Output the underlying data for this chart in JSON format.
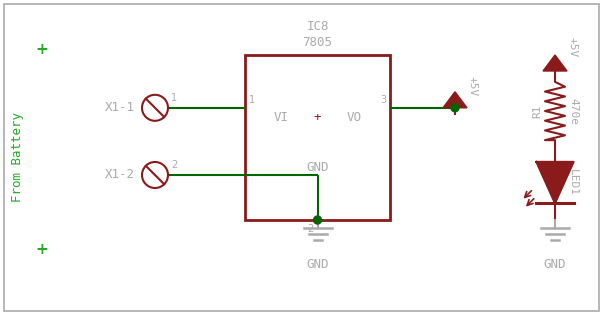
{
  "bg_color": "#ffffff",
  "border_color": "#aaaaaa",
  "wire_color": "#006600",
  "component_color": "#8B1A1A",
  "label_color": "#aaaaaa",
  "green_label_color": "#22aa22",
  "junction_color": "#006600",
  "ic_label_top": "IC8",
  "ic_label_sub": "7805",
  "ic_text_vi": "VI",
  "ic_text_plus": "+",
  "ic_text_vo": "VO",
  "ic_text_gnd": "GND",
  "x1_1_label": "X1-1",
  "x1_2_label": "X1-2",
  "from_battery_label": "From Battery",
  "gnd_label": "GND",
  "r1_label": "R1",
  "r1_val": "470e",
  "led1_label": "LED1",
  "plus5v_label": "+5V",
  "pin1_label": "1",
  "pin2_label": "2",
  "pin3_label": "3",
  "conn1_pin": "1",
  "conn2_pin": "2"
}
